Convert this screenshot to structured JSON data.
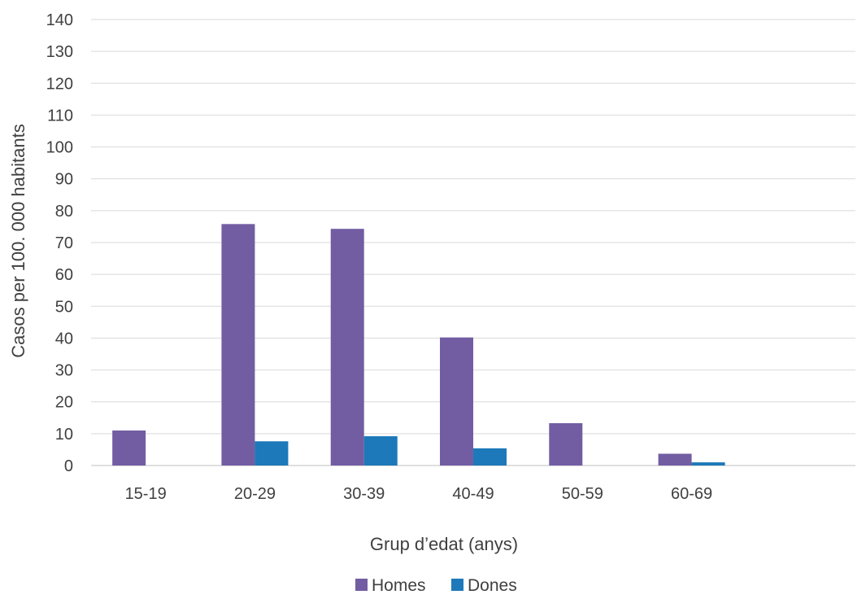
{
  "chart_data": {
    "type": "bar",
    "title": "",
    "xlabel": "Grup d’edat (anys)",
    "ylabel": "Casos per 100. 000 habitants",
    "categories": [
      "15-19",
      "20-29",
      "30-39",
      "40-49",
      "50-59",
      "60-69",
      ""
    ],
    "series": [
      {
        "name": "Homes",
        "color": "#725da2",
        "values": [
          11,
          75.8,
          74.3,
          40.2,
          13.3,
          3.7,
          null
        ]
      },
      {
        "name": "Dones",
        "color": "#1d79b9",
        "values": [
          0,
          7.6,
          9.2,
          5.4,
          0,
          1.0,
          null
        ]
      }
    ],
    "ylim": [
      0,
      140
    ],
    "yticks": [
      0,
      10,
      20,
      30,
      40,
      50,
      60,
      70,
      80,
      90,
      100,
      110,
      120,
      130,
      140
    ],
    "grid": true,
    "legend_position": "bottom"
  }
}
